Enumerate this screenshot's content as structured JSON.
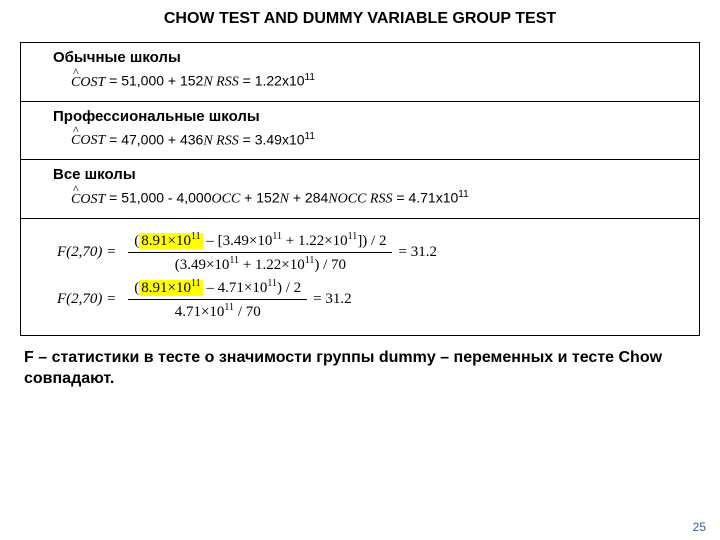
{
  "title": "CHOW TEST AND DUMMY VARIABLE GROUP TEST",
  "sec1": {
    "header": "Обычные школы",
    "cost": "COST",
    "eq": "  =  51,000 + 152",
    "N": "N",
    "rss_lbl": "    RSS",
    "rss_val": " = 1.22x10",
    "exp": "11"
  },
  "sec2": {
    "header": "Профессиональные школы",
    "cost": "COST",
    "eq": "  =  47,000 + 436",
    "N": "N",
    "rss_lbl": "    RSS",
    "rss_val": " = 3.49x10",
    "exp": "11"
  },
  "sec3": {
    "header": "Все школы",
    "cost": "COST",
    "eq1": "  =  51,000 - 4,000",
    "occ": "OCC",
    "eq2": " + 152",
    "N": "N",
    "eq3": " + 284",
    "nocc": "NOCC",
    "rss_lbl": "        RSS",
    "rss_val": " = 4.71x10",
    "exp": "11"
  },
  "f1": {
    "lhs": "F(2,70) =",
    "hl": "8.91×10",
    "hl_exp": "11",
    "after_hl": " – [3.49×10",
    "e1": "11",
    "mid": " + 1.22×10",
    "e2": "11",
    "tail": "]) / 2",
    "den1": "(3.49×10",
    "de1": "11",
    "den2": " + 1.22×10",
    "de2": "11",
    "den3": ") / 70",
    "res": "= 31.2"
  },
  "f2": {
    "lhs": "F(2,70) =",
    "hl": "8.91×10",
    "hl_exp": "11",
    "after_hl": " – 4.71×10",
    "e1": "11",
    "tail": ") / 2",
    "den1": "4.71×10",
    "de1": "11",
    "den2": " / 70",
    "res": "= 31.2"
  },
  "footer": "F – статистики в тесте о значимости группы dummy – переменных и тесте Chow совпадают.",
  "pagenum": "25"
}
